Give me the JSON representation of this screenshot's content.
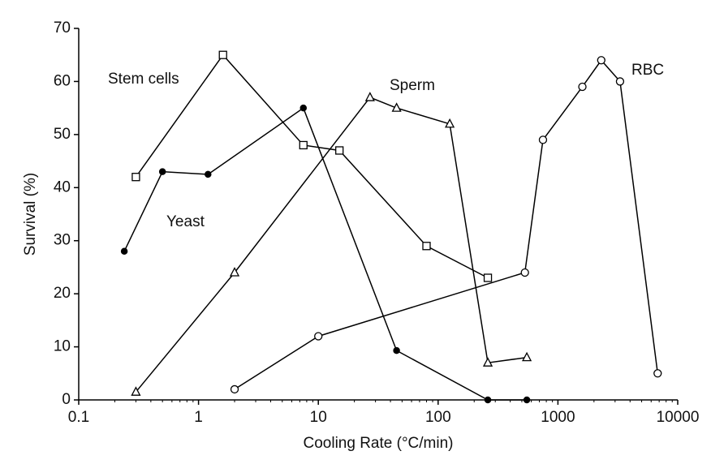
{
  "chart_data": {
    "type": "line",
    "xlabel": "Cooling Rate (°C/min)",
    "ylabel": "Survival (%)",
    "xscale": "log",
    "xlim": [
      0.1,
      10000
    ],
    "xticks": [
      0.1,
      1,
      10,
      100,
      1000,
      10000
    ],
    "ylim": [
      0,
      70
    ],
    "yticks": [
      0,
      10,
      20,
      30,
      40,
      50,
      60,
      70
    ],
    "series": [
      {
        "name": "Stem cells",
        "color": "#000000",
        "marker": "square",
        "x": [
          0.3,
          1.6,
          7.5,
          15,
          80,
          260
        ],
        "values": [
          42,
          65,
          48,
          47,
          29,
          23
        ]
      },
      {
        "name": "Yeast",
        "color": "#000000",
        "marker": "filled-circle",
        "x": [
          0.24,
          0.5,
          1.2,
          7.5,
          45,
          260,
          550
        ],
        "values": [
          28,
          43,
          42.5,
          55,
          9.3,
          0,
          0
        ]
      },
      {
        "name": "Sperm",
        "color": "#000000",
        "marker": "triangle",
        "x": [
          0.3,
          2,
          27,
          45,
          125,
          260,
          550
        ],
        "values": [
          1.5,
          24,
          57,
          55,
          52,
          7,
          8
        ]
      },
      {
        "name": "RBC",
        "color": "#000000",
        "marker": "circle",
        "x": [
          2,
          10,
          530,
          750,
          1600,
          2300,
          3300,
          6800
        ],
        "values": [
          2,
          12,
          24,
          49,
          59,
          64,
          60,
          5
        ]
      }
    ]
  }
}
